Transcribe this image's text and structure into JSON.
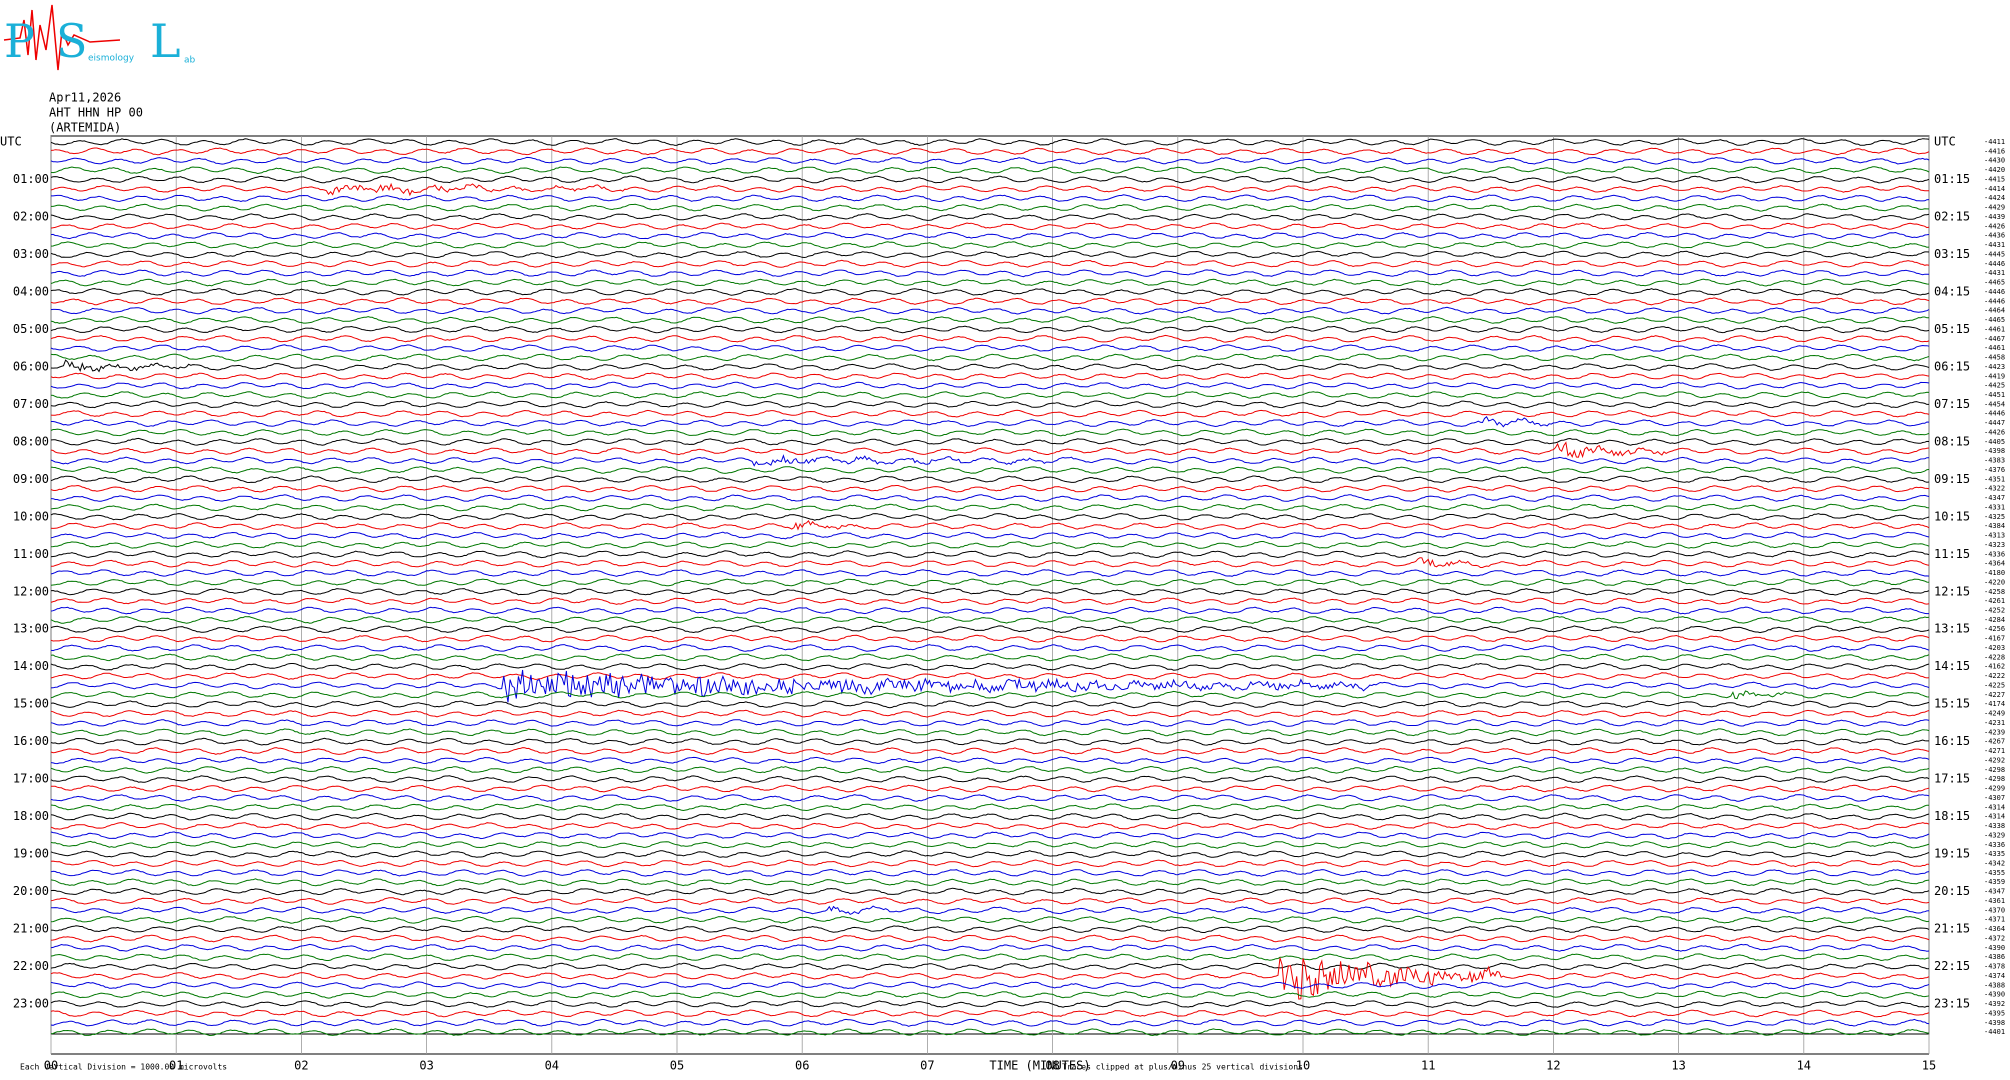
{
  "logo": {
    "letters": [
      "P",
      "S",
      "L"
    ],
    "words": [
      "eismology",
      "ab"
    ]
  },
  "header": {
    "date": "Apr11,2026",
    "station": "AHT HHN HP 00",
    "site": "(ARTEMIDA)"
  },
  "left_labels": [
    "UTC",
    "01:00",
    "02:00",
    "03:00",
    "04:00",
    "05:00",
    "06:00",
    "07:00",
    "08:00",
    "09:00",
    "10:00",
    "11:00",
    "12:00",
    "13:00",
    "14:00",
    "15:00",
    "16:00",
    "17:00",
    "18:00",
    "19:00",
    "20:00",
    "21:00",
    "22:00",
    "23:00"
  ],
  "right_labels": [
    "UTC",
    "01:15",
    "02:15",
    "03:15",
    "04:15",
    "05:15",
    "06:15",
    "07:15",
    "08:15",
    "09:15",
    "10:15",
    "11:15",
    "12:15",
    "13:15",
    "14:15",
    "15:15",
    "16:15",
    "17:15",
    "18:15",
    "19:15",
    "20:15",
    "21:15",
    "22:15",
    "23:15"
  ],
  "trace_offsets": [
    "-4411",
    "-4416",
    "-4430",
    "-4420",
    "-4415",
    "-4414",
    "-4424",
    "-4429",
    "-4439",
    "-4426",
    "-4436",
    "-4431",
    "-4445",
    "-4446",
    "-4431",
    "-4465",
    "-4446",
    "-4446",
    "-4464",
    "-4465",
    "-4461",
    "-4467",
    "-4461",
    "-4458",
    "-4423",
    "-4419",
    "-4425",
    "-4451",
    "-4454",
    "-4446",
    "-4447",
    "-4426",
    "-4405",
    "-4398",
    "-4383",
    "-4376",
    "-4351",
    "-4322",
    "-4347",
    "-4331",
    "-4325",
    "-4384",
    "-4313",
    "-4323",
    "-4336",
    "-4364",
    "-4180",
    "-4220",
    "-4258",
    "-4261",
    "-4252",
    "-4284",
    "-4256",
    "-4167",
    "-4203",
    "-4228",
    "-4162",
    "-4222",
    "-4225",
    "-4227",
    "-4174",
    "-4249",
    "-4231",
    "-4239",
    "-4267",
    "-4271",
    "-4292",
    "-4298",
    "-4298",
    "-4299",
    "-4307",
    "-4314",
    "-4314",
    "-4338",
    "-4329",
    "-4336",
    "-4335",
    "-4342",
    "-4355",
    "-4359",
    "-4347",
    "-4361",
    "-4370",
    "-4371",
    "-4364",
    "-4372",
    "-4390",
    "-4386",
    "-4378",
    "-4374",
    "-4388",
    "-4390",
    "-4392",
    "-4395",
    "-4398",
    "-4401"
  ],
  "x_axis": {
    "ticks": [
      "00",
      "01",
      "02",
      "03",
      "04",
      "05",
      "06",
      "07",
      "08",
      "09",
      "10",
      "11",
      "12",
      "13",
      "14",
      "15"
    ],
    "title": "TIME (MINUTES)"
  },
  "footer": {
    "scale": "Each Vertical Division = 1000.00 microvolts",
    "clip": "Traces clipped at plus/minus 25 vertical divisions"
  }
}
